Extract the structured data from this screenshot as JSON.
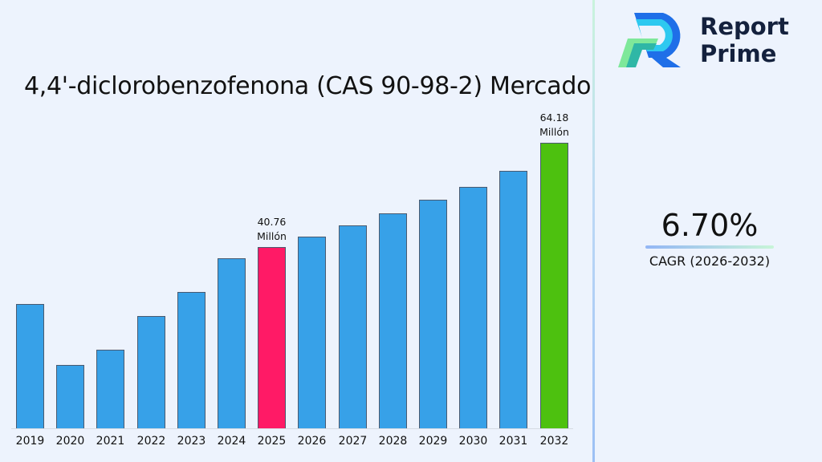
{
  "brand": {
    "name_line1": "Report",
    "name_line2": "Prime"
  },
  "title": "4,4'-diclorobenzofenona (CAS 90-98-2) Mercado",
  "cagr": {
    "value": "6.70%",
    "label": "CAGR (2026-2032)"
  },
  "colors": {
    "bar_default": "#37a1e8",
    "bar_highlight_current": "#ff1a66",
    "bar_highlight_final": "#4dc10f",
    "background": "#edf3fd",
    "brand_text": "#14213d"
  },
  "annotations": [
    {
      "year": "2025",
      "value": "40.76",
      "unit": "Millón"
    },
    {
      "year": "2032",
      "value": "64.18",
      "unit": "Millón"
    }
  ],
  "chart_data": {
    "type": "bar",
    "title": "4,4'-diclorobenzofenona (CAS 90-98-2) Mercado",
    "xlabel": "",
    "ylabel": "",
    "unit": "Millón",
    "categories": [
      "2019",
      "2020",
      "2021",
      "2022",
      "2023",
      "2024",
      "2025",
      "2026",
      "2027",
      "2028",
      "2029",
      "2030",
      "2031",
      "2032"
    ],
    "values": [
      27.9,
      14.3,
      17.6,
      25.3,
      30.6,
      38.2,
      40.76,
      43.0,
      45.7,
      48.4,
      51.4,
      54.2,
      57.8,
      64.18
    ],
    "highlight": {
      "2025": "#ff1a66",
      "2032": "#4dc10f"
    },
    "data_labels": {
      "2025": "40.76 Millón",
      "2032": "64.18 Millón"
    },
    "ylim": [
      0,
      64.18
    ],
    "grid": false,
    "legend": null,
    "cagr": "6.70%",
    "cagr_period": "2026-2032"
  }
}
